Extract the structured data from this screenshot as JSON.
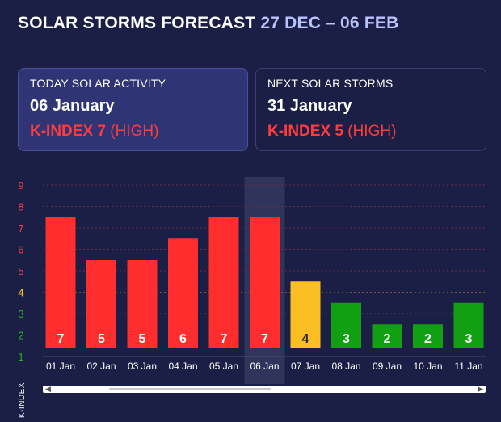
{
  "header": {
    "title": "SOLAR STORMS FORECAST",
    "range": "27 DEC – 06 FEB"
  },
  "today_card": {
    "label": "TODAY SOLAR ACTIVITY",
    "date": "06 January",
    "kindex": "K-INDEX 7",
    "level": "(HIGH)"
  },
  "next_card": {
    "label": "NEXT SOLAR STORMS",
    "date": "31 January",
    "kindex": "K-INDEX 5",
    "level": "(HIGH)"
  },
  "colors": {
    "background": "#1c1f45",
    "high": "#ff2d2d",
    "moderate": "#fbbf24",
    "low": "#11a011",
    "highlight": "#34385f"
  },
  "chart_data": {
    "type": "bar",
    "categories": [
      "01 Jan",
      "02 Jan",
      "03 Jan",
      "04 Jan",
      "05 Jan",
      "06 Jan",
      "07 Jan",
      "08 Jan",
      "09 Jan",
      "10 Jan",
      "11 Jan"
    ],
    "values": [
      7,
      5,
      5,
      6,
      7,
      7,
      4,
      3,
      2,
      2,
      3
    ],
    "ylabel": "K-INDEX",
    "yticks": [
      1,
      2,
      3,
      4,
      5,
      6,
      7,
      8,
      9
    ],
    "ylim": [
      1,
      9
    ],
    "highlighted_category": "06 Jan",
    "grid": true,
    "horizontal_scroll": true
  }
}
